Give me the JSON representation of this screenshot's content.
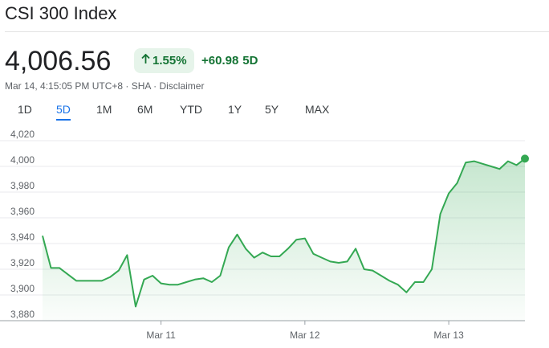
{
  "header": {
    "title": "CSI 300 Index",
    "price": "4,006.56",
    "percent_change": "1.55%",
    "absolute_change": "+60.98",
    "change_period": "5D",
    "timestamp": "Mar 14, 4:15:05 PM UTC+8",
    "exchange": "SHA",
    "disclaimer": "Disclaimer",
    "separator": "·",
    "up_arrow_icon": "arrow-up-icon",
    "positive_color": "#137333",
    "positive_bg": "#e6f4ea"
  },
  "tabs": [
    {
      "label": "1D",
      "active": false
    },
    {
      "label": "5D",
      "active": true
    },
    {
      "label": "1M",
      "active": false
    },
    {
      "label": "6M",
      "active": false
    },
    {
      "label": "YTD",
      "active": false
    },
    {
      "label": "1Y",
      "active": false
    },
    {
      "label": "5Y",
      "active": false
    },
    {
      "label": "MAX",
      "active": false
    }
  ],
  "chart_data": {
    "type": "area",
    "title": "",
    "xlabel": "",
    "ylabel": "",
    "ylim": [
      3880,
      4020
    ],
    "y_ticks": [
      "4,020",
      "4,000",
      "3,980",
      "3,960",
      "3,940",
      "3,920",
      "3,900",
      "3,880"
    ],
    "y_tick_values": [
      4020,
      4000,
      3980,
      3960,
      3940,
      3920,
      3900,
      3880
    ],
    "x_tick_labels": [
      "Mar 11",
      "Mar 12",
      "Mar 13"
    ],
    "x_tick_index": [
      14,
      31,
      48
    ],
    "grid": true,
    "line_color": "#34a853",
    "series": [
      {
        "values": [
          3946,
          3921,
          3921,
          3916,
          3911,
          3911,
          3911,
          3911,
          3914,
          3919,
          3931,
          3891,
          3912,
          3915,
          3909,
          3908,
          3908,
          3910,
          3912,
          3913,
          3910,
          3915,
          3937,
          3947,
          3936,
          3929,
          3933,
          3930,
          3930,
          3936,
          3943,
          3944,
          3932,
          3929,
          3926,
          3925,
          3926,
          3936,
          3920,
          3919,
          3915,
          3911,
          3908,
          3902,
          3910,
          3910,
          3920,
          3963,
          3979,
          3987,
          4003,
          4004,
          4002,
          4000,
          3998,
          4004,
          4001,
          4006
        ]
      }
    ]
  }
}
